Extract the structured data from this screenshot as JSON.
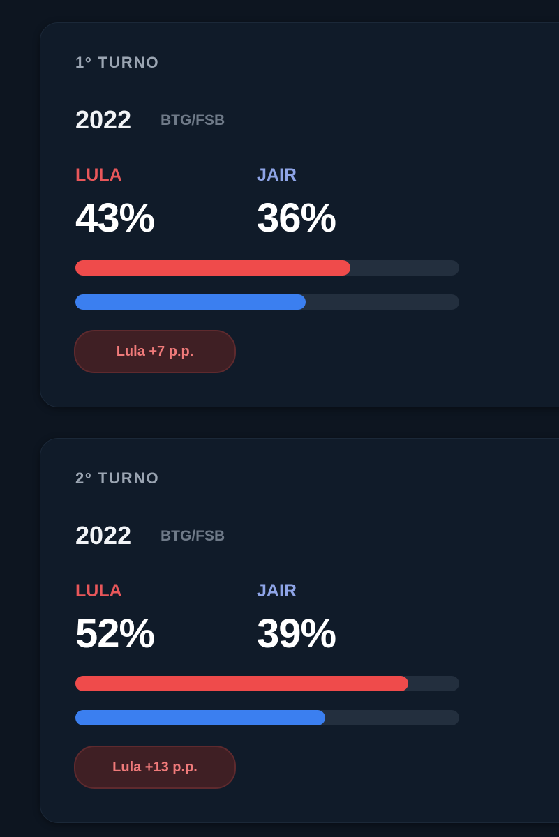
{
  "cards": [
    {
      "round": "1º TURNO",
      "year": "2022",
      "source": "BTG/FSB",
      "xlim": [
        0,
        60
      ],
      "candidates": [
        {
          "name": "LULA",
          "color": "#ef4b4b",
          "value": 43,
          "label": "43%"
        },
        {
          "name": "JAIR",
          "color": "#3b7ff0",
          "value": 36,
          "label": "36%"
        }
      ],
      "badge": "Lula +7 p.p."
    },
    {
      "round": "2º TURNO",
      "year": "2022",
      "source": "BTG/FSB",
      "xlim": [
        0,
        60
      ],
      "candidates": [
        {
          "name": "LULA",
          "color": "#ef4b4b",
          "value": 52,
          "label": "52%"
        },
        {
          "name": "JAIR",
          "color": "#3b7ff0",
          "value": 39,
          "label": "39%"
        }
      ],
      "badge": "Lula +13 p.p."
    }
  ]
}
